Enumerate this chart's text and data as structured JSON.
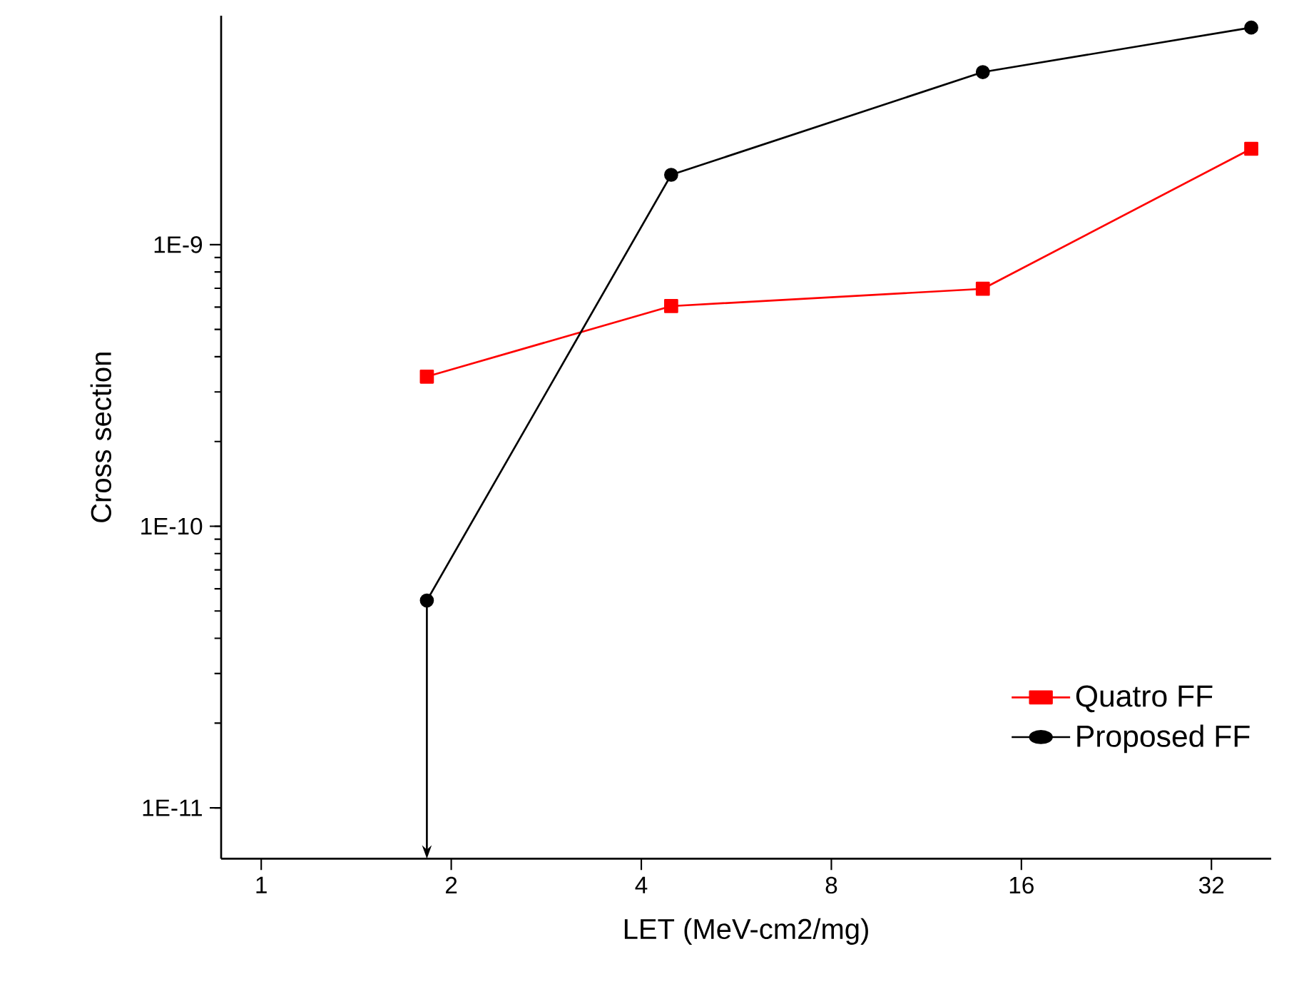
{
  "chart_data": {
    "type": "line",
    "xlabel": "LET (MeV-cm2/mg)",
    "ylabel": "Cross section",
    "x": [
      1.83,
      4.46,
      13.9,
      37.0
    ],
    "series": [
      {
        "name": "Quatro FF",
        "color": "#ff0000",
        "marker": "square",
        "values": [
          3.4e-10,
          6.05e-10,
          6.97e-10,
          2.19e-09
        ]
      },
      {
        "name": "Proposed FF",
        "color": "#000000",
        "marker": "circle",
        "values": [
          5.45e-11,
          1.77e-09,
          4.1e-09,
          5.9e-09
        ]
      }
    ],
    "log": "xy",
    "xlim": [
      0.864,
      39.8
    ],
    "ylim": [
      6.6e-12,
      6.5e-09
    ],
    "xticks": [
      1,
      2,
      4,
      8,
      16,
      32
    ],
    "yticks": [
      {
        "value": 1e-11,
        "label": "1E-11"
      },
      {
        "value": 1e-10,
        "label": "1E-10"
      },
      {
        "value": 1e-09,
        "label": "1E-9"
      }
    ],
    "grid": false,
    "legend": "bottom right",
    "line_style": "solid"
  }
}
